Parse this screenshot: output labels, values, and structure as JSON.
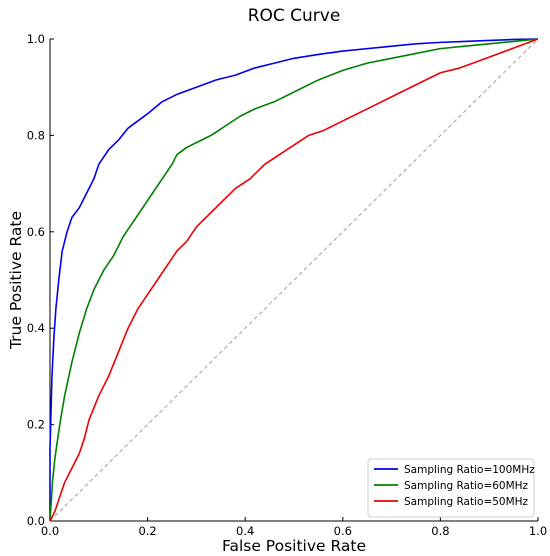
{
  "chart_data": {
    "type": "line",
    "title": "ROC Curve",
    "xlabel": "False Positive Rate",
    "ylabel": "True Positive Rate",
    "xlim": [
      0.0,
      1.0
    ],
    "ylim": [
      0.0,
      1.0
    ],
    "x_ticks": [
      "0.0",
      "0.2",
      "0.4",
      "0.6",
      "0.8",
      "1.0"
    ],
    "y_ticks": [
      "0.0",
      "0.2",
      "0.4",
      "0.6",
      "0.8",
      "1.0"
    ],
    "grid": false,
    "legend_position": "lower-right",
    "reference_line": {
      "x": [
        0.0,
        1.0
      ],
      "y": [
        0.0,
        1.0
      ],
      "style": "dashed",
      "color": "#a0a0a0"
    },
    "series": [
      {
        "name": "Sampling Ratio=100MHz",
        "color": "#0000ee",
        "x": [
          0.0,
          0.0,
          0.004,
          0.008,
          0.012,
          0.018,
          0.025,
          0.035,
          0.045,
          0.06,
          0.075,
          0.09,
          0.1,
          0.12,
          0.14,
          0.16,
          0.18,
          0.2,
          0.23,
          0.26,
          0.3,
          0.34,
          0.38,
          0.42,
          0.46,
          0.5,
          0.55,
          0.6,
          0.65,
          0.7,
          0.75,
          0.8,
          0.85,
          0.9,
          0.95,
          1.0
        ],
        "y": [
          0.0,
          0.15,
          0.3,
          0.38,
          0.44,
          0.5,
          0.56,
          0.6,
          0.63,
          0.65,
          0.68,
          0.71,
          0.74,
          0.77,
          0.79,
          0.815,
          0.83,
          0.845,
          0.87,
          0.885,
          0.9,
          0.915,
          0.925,
          0.94,
          0.95,
          0.96,
          0.968,
          0.975,
          0.98,
          0.985,
          0.99,
          0.993,
          0.995,
          0.997,
          0.999,
          1.0
        ]
      },
      {
        "name": "Sampling Ratio=60MHz",
        "color": "#008000",
        "x": [
          0.0,
          0.005,
          0.01,
          0.02,
          0.03,
          0.045,
          0.06,
          0.075,
          0.09,
          0.11,
          0.13,
          0.15,
          0.17,
          0.19,
          0.21,
          0.23,
          0.25,
          0.26,
          0.28,
          0.3,
          0.33,
          0.36,
          0.39,
          0.42,
          0.46,
          0.5,
          0.55,
          0.6,
          0.65,
          0.7,
          0.75,
          0.8,
          0.85,
          0.9,
          0.95,
          1.0
        ],
        "y": [
          0.0,
          0.08,
          0.13,
          0.2,
          0.26,
          0.33,
          0.39,
          0.44,
          0.48,
          0.52,
          0.55,
          0.59,
          0.62,
          0.65,
          0.68,
          0.71,
          0.74,
          0.76,
          0.775,
          0.785,
          0.8,
          0.82,
          0.84,
          0.855,
          0.87,
          0.89,
          0.915,
          0.935,
          0.95,
          0.96,
          0.97,
          0.98,
          0.985,
          0.99,
          0.995,
          1.0
        ]
      },
      {
        "name": "Sampling Ratio=50MHz",
        "color": "#ee0000",
        "x": [
          0.0,
          0.01,
          0.02,
          0.03,
          0.045,
          0.06,
          0.07,
          0.08,
          0.1,
          0.12,
          0.14,
          0.16,
          0.18,
          0.2,
          0.22,
          0.24,
          0.26,
          0.28,
          0.3,
          0.32,
          0.35,
          0.38,
          0.41,
          0.44,
          0.47,
          0.5,
          0.53,
          0.56,
          0.6,
          0.64,
          0.68,
          0.72,
          0.76,
          0.8,
          0.84,
          0.88,
          0.92,
          0.96,
          1.0
        ],
        "y": [
          0.0,
          0.02,
          0.05,
          0.08,
          0.11,
          0.14,
          0.17,
          0.21,
          0.26,
          0.3,
          0.35,
          0.4,
          0.44,
          0.47,
          0.5,
          0.53,
          0.56,
          0.58,
          0.61,
          0.63,
          0.66,
          0.69,
          0.71,
          0.74,
          0.76,
          0.78,
          0.8,
          0.81,
          0.83,
          0.85,
          0.87,
          0.89,
          0.91,
          0.93,
          0.94,
          0.955,
          0.97,
          0.985,
          1.0
        ]
      }
    ]
  }
}
